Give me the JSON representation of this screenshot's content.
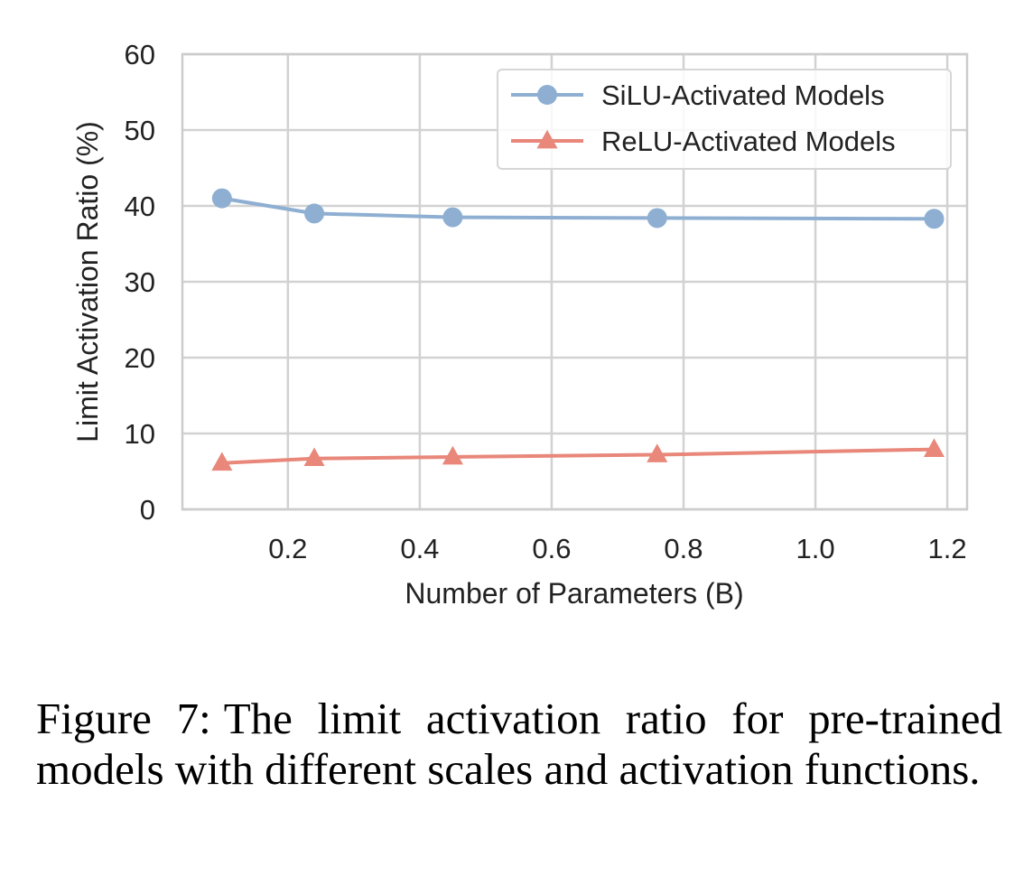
{
  "chart_data": {
    "type": "line",
    "title": "",
    "xlabel": "Number of Parameters (B)",
    "ylabel": "Limit Activation Ratio (%)",
    "xlim": [
      0.04,
      1.23
    ],
    "ylim": [
      0,
      60
    ],
    "xticks": [
      0.2,
      0.4,
      0.6,
      0.8,
      1.0,
      1.2
    ],
    "xtick_labels": [
      "0.2",
      "0.4",
      "0.6",
      "0.8",
      "1.0",
      "1.2"
    ],
    "yticks": [
      0,
      10,
      20,
      30,
      40,
      50,
      60
    ],
    "ytick_labels": [
      "0",
      "10",
      "20",
      "30",
      "40",
      "50",
      "60"
    ],
    "grid": true,
    "legend_position": "top-right",
    "series": [
      {
        "name": "SiLU-Activated Models",
        "color": "#8EAFD2",
        "marker": "circle",
        "x": [
          0.1,
          0.24,
          0.45,
          0.76,
          1.18
        ],
        "y": [
          41.0,
          39.0,
          38.5,
          38.4,
          38.3
        ]
      },
      {
        "name": "ReLU-Activated Models",
        "color": "#E8877A",
        "marker": "triangle",
        "x": [
          0.1,
          0.24,
          0.45,
          0.76,
          1.18
        ],
        "y": [
          6.1,
          6.7,
          6.9,
          7.2,
          7.9
        ]
      }
    ]
  },
  "caption": {
    "label": "Figure 7:",
    "text": "The limit activation ratio for pre-trained models with different scales and activation functions."
  }
}
